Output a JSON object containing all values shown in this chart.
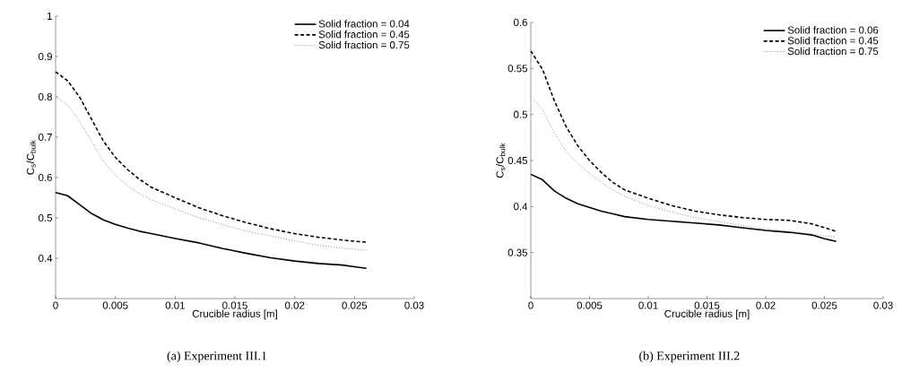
{
  "chart_data": [
    {
      "type": "line",
      "xlabel": "Crucible radius [m]",
      "ylabel": "C$_{s}$/C$_{bulk}$",
      "annotations": [
        "(a) Experiment III.1"
      ],
      "xlim": [
        0,
        0.03
      ],
      "ylim": [
        0.3,
        1
      ],
      "xticks": [
        0,
        0.005,
        0.01,
        0.015,
        0.02,
        0.025,
        0.03
      ],
      "yticks": [
        0.4,
        0.5,
        0.6,
        0.7,
        0.8,
        0.9,
        1
      ],
      "legend": "top right",
      "grid": false,
      "x": [
        0,
        0.001,
        0.002,
        0.003,
        0.004,
        0.005,
        0.006,
        0.007,
        0.008,
        0.01,
        0.012,
        0.014,
        0.016,
        0.018,
        0.02,
        0.022,
        0.024,
        0.025,
        0.026
      ],
      "series": [
        {
          "name": "Solid fraction = 0.04",
          "color": "#000000",
          "line_style": "solid",
          "values": [
            0.563,
            0.555,
            0.533,
            0.511,
            0.495,
            0.484,
            0.475,
            0.467,
            0.461,
            0.449,
            0.438,
            0.424,
            0.412,
            0.401,
            0.393,
            0.387,
            0.383,
            0.379,
            0.375
          ]
        },
        {
          "name": "Solid fraction = 0.45",
          "color": "#000000",
          "line_style": "dashed",
          "values": [
            0.862,
            0.84,
            0.8,
            0.745,
            0.69,
            0.65,
            0.62,
            0.596,
            0.576,
            0.55,
            0.525,
            0.505,
            0.488,
            0.473,
            0.461,
            0.452,
            0.445,
            0.442,
            0.44
          ]
        },
        {
          "name": "Solid fraction = 0.75",
          "color": "#888888",
          "line_style": "dotted",
          "values": [
            0.8,
            0.78,
            0.74,
            0.69,
            0.64,
            0.605,
            0.58,
            0.56,
            0.545,
            0.522,
            0.5,
            0.483,
            0.467,
            0.455,
            0.443,
            0.432,
            0.425,
            0.422,
            0.42
          ]
        }
      ]
    },
    {
      "type": "line",
      "xlabel": "Crucible radius [m]",
      "ylabel": "C$_{s}$/C$_{bulk}$",
      "annotations": [
        "(b) Experiment III.2"
      ],
      "xlim": [
        0,
        0.03
      ],
      "ylim": [
        0.3,
        0.6
      ],
      "xticks": [
        0,
        0.005,
        0.01,
        0.015,
        0.02,
        0.025,
        0.03
      ],
      "yticks": [
        0.35,
        0.4,
        0.45,
        0.5,
        0.55,
        0.6
      ],
      "legend": "top right",
      "grid": false,
      "x": [
        0,
        0.001,
        0.002,
        0.003,
        0.004,
        0.005,
        0.006,
        0.007,
        0.008,
        0.01,
        0.012,
        0.014,
        0.016,
        0.018,
        0.02,
        0.022,
        0.024,
        0.025,
        0.026
      ],
      "series": [
        {
          "name": "Solid fraction = 0.06",
          "color": "#000000",
          "line_style": "solid",
          "values": [
            0.435,
            0.429,
            0.417,
            0.409,
            0.403,
            0.399,
            0.395,
            0.392,
            0.389,
            0.386,
            0.384,
            0.382,
            0.38,
            0.377,
            0.374,
            0.372,
            0.369,
            0.365,
            0.362
          ]
        },
        {
          "name": "Solid fraction = 0.45",
          "color": "#000000",
          "line_style": "dashed",
          "values": [
            0.569,
            0.549,
            0.515,
            0.487,
            0.466,
            0.45,
            0.437,
            0.426,
            0.418,
            0.409,
            0.401,
            0.395,
            0.391,
            0.388,
            0.386,
            0.385,
            0.381,
            0.377,
            0.373
          ]
        },
        {
          "name": "Solid fraction = 0.75",
          "color": "#888888",
          "line_style": "dotted",
          "values": [
            0.52,
            0.505,
            0.48,
            0.46,
            0.447,
            0.436,
            0.426,
            0.418,
            0.411,
            0.401,
            0.394,
            0.388,
            0.384,
            0.379,
            0.376,
            0.373,
            0.37,
            0.368,
            0.367
          ]
        }
      ]
    }
  ]
}
